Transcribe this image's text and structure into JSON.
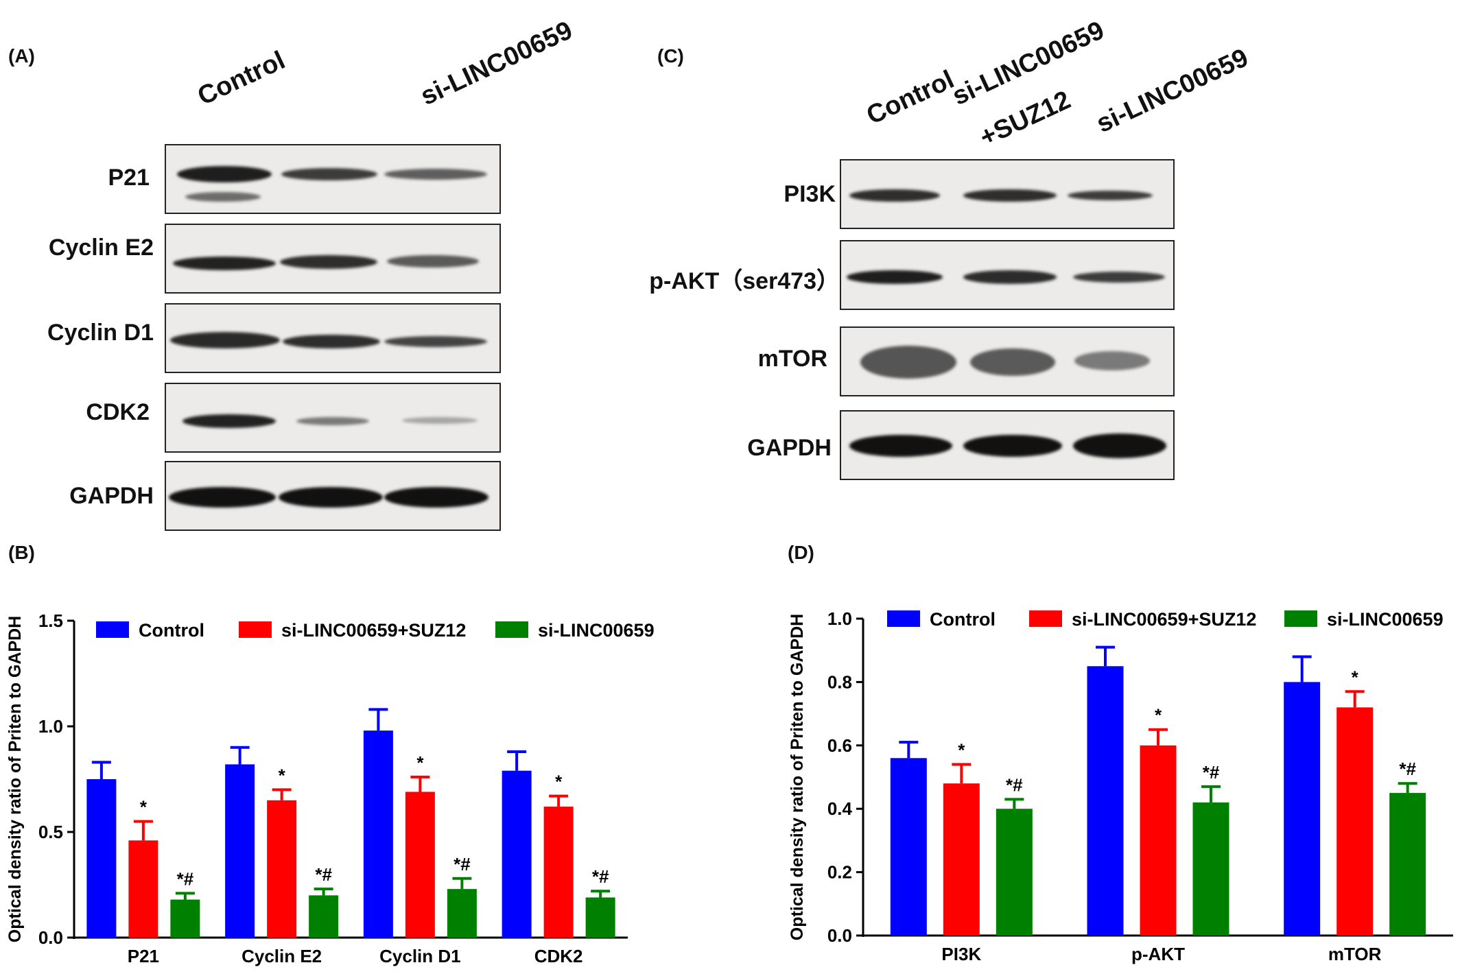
{
  "panels": {
    "a_label": "(A)",
    "b_label": "(B)",
    "c_label": "(C)",
    "d_label": "(D)"
  },
  "blot_a": {
    "lanes": [
      "Control",
      "si-LINC00659"
    ],
    "rows": [
      "P21",
      "Cyclin E2",
      "Cyclin D1",
      "CDK2",
      "GAPDH"
    ]
  },
  "blot_c": {
    "lanes": [
      "Control",
      "si-LINC00659",
      "+SUZ12",
      "si-LINC00659"
    ],
    "rows": [
      "PI3K",
      "p-AKT（ser473）",
      "mTOR",
      "GAPDH"
    ]
  },
  "colors": {
    "control": "#0000ff",
    "suz12": "#ff0000",
    "si": "#008000"
  },
  "chart_data": [
    {
      "type": "bar",
      "categories": [
        "P21",
        "Cyclin E2",
        "Cyclin D1",
        "CDK2"
      ],
      "series": [
        {
          "name": "Control",
          "values": [
            0.75,
            0.82,
            0.98,
            0.79
          ],
          "errors": [
            0.08,
            0.08,
            0.1,
            0.09
          ],
          "marks": [
            "",
            "",
            "",
            ""
          ]
        },
        {
          "name": "si-LINC00659+SUZ12",
          "values": [
            0.46,
            0.65,
            0.69,
            0.62
          ],
          "errors": [
            0.09,
            0.05,
            0.07,
            0.05
          ],
          "marks": [
            "*",
            "*",
            "*",
            "*"
          ]
        },
        {
          "name": "si-LINC00659",
          "values": [
            0.18,
            0.2,
            0.23,
            0.19
          ],
          "errors": [
            0.03,
            0.03,
            0.05,
            0.03
          ],
          "marks": [
            "*#",
            "*#",
            "*#",
            "*#"
          ]
        }
      ],
      "ylabel": "Optical density ratio of Priten to GAPDH",
      "ylim": [
        0,
        1.5
      ],
      "yticks": [
        "0.0",
        "0.5",
        "1.0",
        "1.5"
      ],
      "legend": "top"
    },
    {
      "type": "bar",
      "categories": [
        "PI3K",
        "p-AKT",
        "mTOR"
      ],
      "series": [
        {
          "name": "Control",
          "values": [
            0.56,
            0.85,
            0.8
          ],
          "errors": [
            0.05,
            0.06,
            0.08
          ],
          "marks": [
            "",
            "",
            ""
          ]
        },
        {
          "name": "si-LINC00659+SUZ12",
          "values": [
            0.48,
            0.6,
            0.72
          ],
          "errors": [
            0.06,
            0.05,
            0.05
          ],
          "marks": [
            "*",
            "*",
            "*"
          ]
        },
        {
          "name": "si-LINC00659",
          "values": [
            0.4,
            0.42,
            0.45
          ],
          "errors": [
            0.03,
            0.05,
            0.03
          ],
          "marks": [
            "*#",
            "*#",
            "*#"
          ]
        }
      ],
      "ylabel": "Optical density ratio of Priten to GAPDH",
      "ylim": [
        0,
        1.0
      ],
      "yticks": [
        "0.0",
        "0.2",
        "0.4",
        "0.6",
        "0.8",
        "1.0"
      ],
      "legend": "top"
    }
  ]
}
